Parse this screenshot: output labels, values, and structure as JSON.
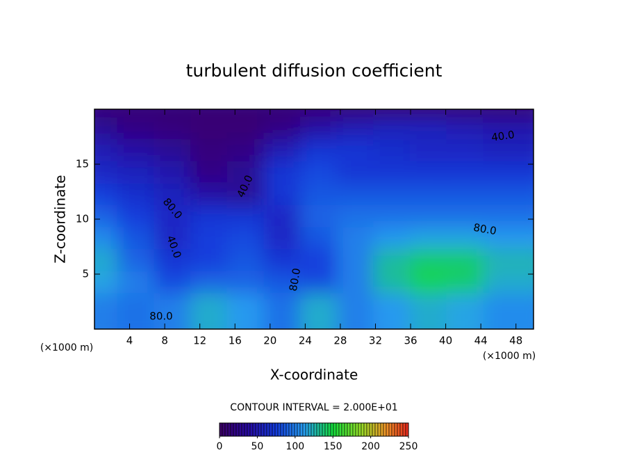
{
  "chart_data": {
    "type": "heatmap",
    "title": "turbulent diffusion coefficient",
    "x_label": "X-coordinate",
    "y_label": "Z-coordinate",
    "x_unit_left": "(×1000 m)",
    "x_unit_right": "(×1000 m)",
    "x": [
      2.08,
      6.25,
      10.42,
      14.58,
      18.75,
      22.92,
      27.08,
      31.25,
      35.42,
      39.58,
      43.75,
      47.92
    ],
    "y": [
      19,
      17,
      15,
      13,
      11,
      9,
      7,
      5,
      3,
      1
    ],
    "z": [
      [
        10,
        10,
        10,
        10,
        10,
        10,
        10,
        10,
        10,
        10,
        10,
        10
      ],
      [
        30,
        20,
        15,
        10,
        10,
        20,
        40,
        50,
        55,
        55,
        50,
        45
      ],
      [
        50,
        40,
        30,
        15,
        20,
        50,
        70,
        70,
        65,
        60,
        60,
        55
      ],
      [
        60,
        55,
        45,
        20,
        30,
        70,
        80,
        70,
        70,
        70,
        70,
        70
      ],
      [
        75,
        65,
        55,
        40,
        30,
        70,
        85,
        85,
        85,
        85,
        85,
        85
      ],
      [
        90,
        75,
        60,
        70,
        70,
        60,
        90,
        95,
        95,
        95,
        95,
        95
      ],
      [
        105,
        85,
        60,
        75,
        80,
        60,
        85,
        100,
        110,
        115,
        115,
        110
      ],
      [
        120,
        90,
        70,
        75,
        85,
        70,
        75,
        100,
        130,
        140,
        140,
        125
      ],
      [
        115,
        100,
        80,
        90,
        90,
        85,
        80,
        100,
        130,
        145,
        140,
        120
      ],
      [
        100,
        95,
        100,
        120,
        110,
        95,
        120,
        100,
        110,
        120,
        115,
        105
      ]
    ],
    "xlim": [
      0,
      50
    ],
    "ylim": [
      0,
      20
    ],
    "xticks": [
      4,
      8,
      12,
      16,
      20,
      24,
      28,
      32,
      36,
      40,
      44,
      48
    ],
    "yticks": [
      5,
      10,
      15
    ],
    "contour_labels": [
      "40.0",
      "80.0",
      "80.0",
      "40.0",
      "40.0",
      "80.0",
      "80.0"
    ],
    "contour_interval_text": "CONTOUR INTERVAL = 2.000E+01",
    "colorbar": {
      "range": [
        0,
        250
      ],
      "ticks": [
        0,
        50,
        100,
        150,
        200,
        250
      ]
    }
  }
}
